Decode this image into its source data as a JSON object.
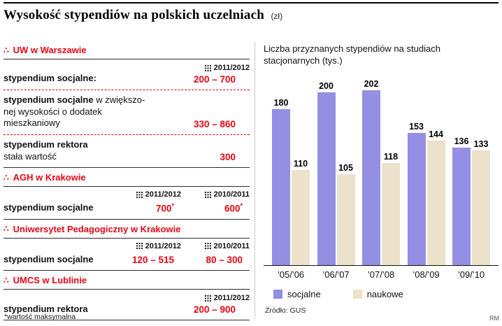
{
  "page": {
    "title": "Wysokość stypendiów na polskich uczelniach",
    "unit": "(zł)",
    "footnote": "*wartość maksymalna",
    "credit": "RM"
  },
  "colors": {
    "red": "#e30613",
    "line": "#2b2b2b",
    "socjalne": "#938fe3",
    "naukowe": "#ece1cb"
  },
  "table": {
    "sections": [
      {
        "name": "UW w Warszawie",
        "layout": "single",
        "year": "2011/2012",
        "rows": [
          {
            "label_bold": "stypendium socjalne:",
            "label_rest": "",
            "value": "200 – 700"
          },
          {
            "label_bold": "stypendium socjalne",
            "label_rest": " w zwiększo-\nnej wysokości o dodatek\nmieszkaniowy",
            "value": "330 – 860"
          },
          {
            "label_bold": "stypendium rektora",
            "label_rest": "\nstała wartość",
            "value": "300"
          }
        ]
      },
      {
        "name": "AGH w Krakowie",
        "layout": "two-col",
        "years": [
          "2011/2012",
          "2010/2011"
        ],
        "rows": [
          {
            "label_bold": "stypendium socjalne",
            "values": [
              "700*",
              "600*"
            ]
          }
        ]
      },
      {
        "name": "Uniwersytet Pedagogiczny w Krakowie",
        "layout": "two-col",
        "years": [
          "2011/2012",
          "2010/2011"
        ],
        "rows": [
          {
            "label_bold": "stypendium socjalne",
            "values": [
              "120 – 515",
              "80 – 300"
            ]
          }
        ]
      },
      {
        "name": "UMCS w Lublinie",
        "layout": "single",
        "year": "2011/2012",
        "rows": [
          {
            "label_bold": "stypendium rektora",
            "label_rest": "",
            "value": "200 – 900"
          }
        ]
      }
    ]
  },
  "chart_data": {
    "type": "bar",
    "title": "Liczba przyznanych stypendiów na studiach stacjonarnych (tys.)",
    "categories": [
      "’05/’06",
      "’06/’07",
      "’07/’08",
      "’08/’09",
      "’09/’10"
    ],
    "series": [
      {
        "name": "socjalne",
        "color": "#938fe3",
        "values": [
          180,
          200,
          202,
          153,
          136
        ]
      },
      {
        "name": "naukowe",
        "color": "#ece1cb",
        "values": [
          110,
          105,
          118,
          144,
          133
        ]
      }
    ],
    "ylim": [
      0,
      220
    ],
    "grid": false,
    "legend_position": "bottom",
    "source": "Źródło: GUS"
  }
}
